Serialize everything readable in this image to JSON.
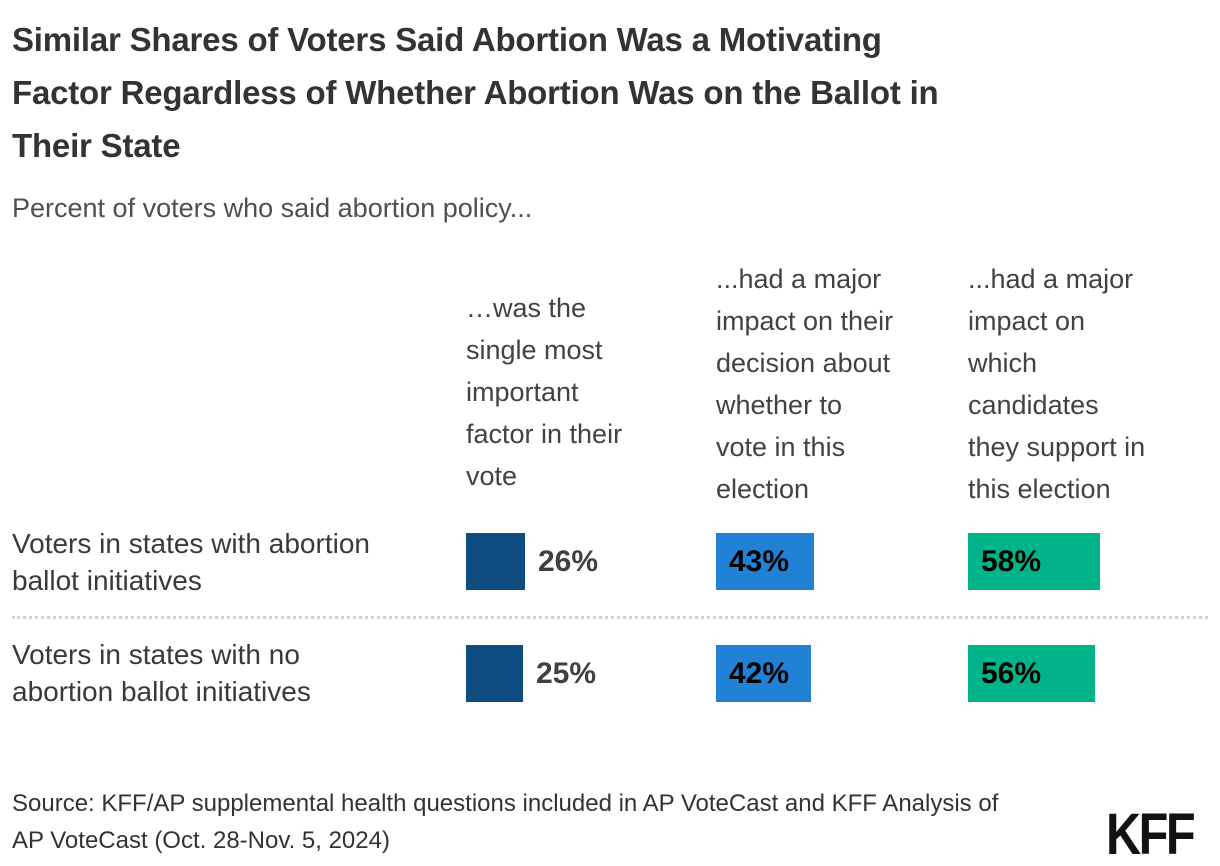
{
  "title": "Similar Shares of Voters Said Abortion Was a Motivating\nFactor Regardless of Whether Abortion Was on the Ballot in\nTheir State",
  "subtitle": "Percent of voters who said abortion policy...",
  "chart_data": {
    "type": "bar",
    "orientation": "horizontal",
    "value_unit": "%",
    "axis_range": [
      0,
      100
    ],
    "grid": false,
    "legend": "none",
    "columns": [
      {
        "header": "…was the\nsingle most\nimportant\nfactor in their\nvote",
        "color": "#0f4c81",
        "label_position": "outside"
      },
      {
        "header": "...had a major\nimpact on their\ndecision about\nwhether to\nvote in this\nelection",
        "color": "#2182d5",
        "label_position": "inside"
      },
      {
        "header": "...had a major\nimpact on\nwhich\ncandidates\nthey support in\nthis election",
        "color": "#00b388",
        "label_position": "inside"
      }
    ],
    "rows": [
      {
        "label": "Voters in states with abortion\nballot initiatives",
        "values": [
          26,
          43,
          58
        ],
        "display": [
          "26%",
          "43%",
          "58%"
        ]
      },
      {
        "label": "Voters in states with no\nabortion ballot initiatives",
        "values": [
          25,
          42,
          56
        ],
        "display": [
          "25%",
          "42%",
          "56%"
        ]
      }
    ]
  },
  "source": "Source: KFF/AP supplemental health questions included in AP VoteCast and KFF Analysis of\nAP VoteCast (Oct. 28-Nov. 5, 2024)",
  "logo": {
    "text": "KFF"
  },
  "colors": {
    "background": "#ffffff",
    "title_text": "#333333",
    "body_text": "#424242",
    "outside_value_text": "#404040",
    "inside_value_text": "#000000",
    "divider": "#d2d2d2",
    "navy_bar": "#0f4c81",
    "blue_bar": "#2182d5",
    "teal_bar": "#00b388"
  }
}
